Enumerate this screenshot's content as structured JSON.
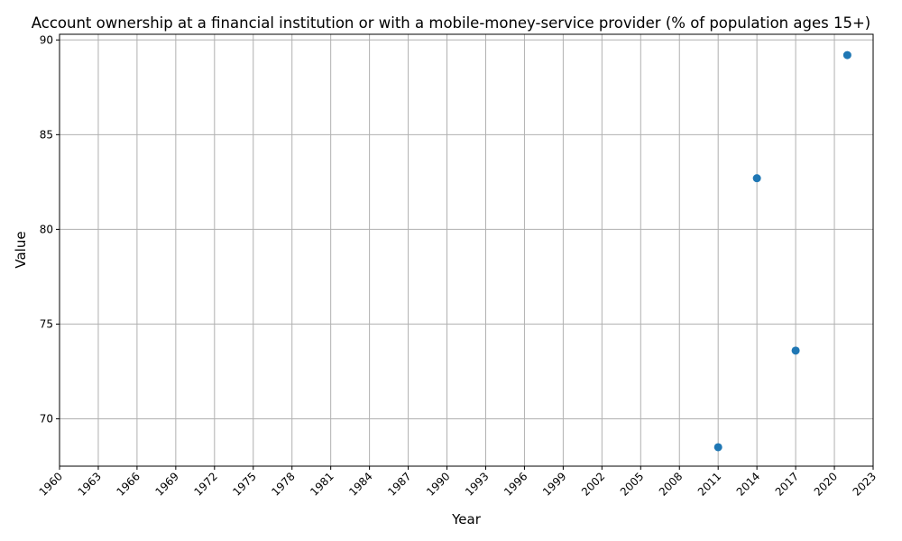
{
  "chart_data": {
    "type": "scatter",
    "title": "Account ownership at a financial institution or with a mobile-money-service provider (% of population ages 15+)",
    "xlabel": "Year",
    "ylabel": "Value",
    "xlim": [
      1960,
      2023
    ],
    "ylim": [
      67.5,
      90.3
    ],
    "xticks": [
      1960,
      1963,
      1966,
      1969,
      1972,
      1975,
      1978,
      1981,
      1984,
      1987,
      1990,
      1993,
      1996,
      1999,
      2002,
      2005,
      2008,
      2011,
      2014,
      2017,
      2020,
      2023
    ],
    "yticks": [
      70,
      75,
      80,
      85,
      90
    ],
    "grid": true,
    "point_color": "#1f77b4",
    "points": [
      {
        "x": 2011,
        "y": 68.5
      },
      {
        "x": 2014,
        "y": 82.7
      },
      {
        "x": 2017,
        "y": 73.6
      },
      {
        "x": 2021,
        "y": 89.2
      }
    ]
  }
}
